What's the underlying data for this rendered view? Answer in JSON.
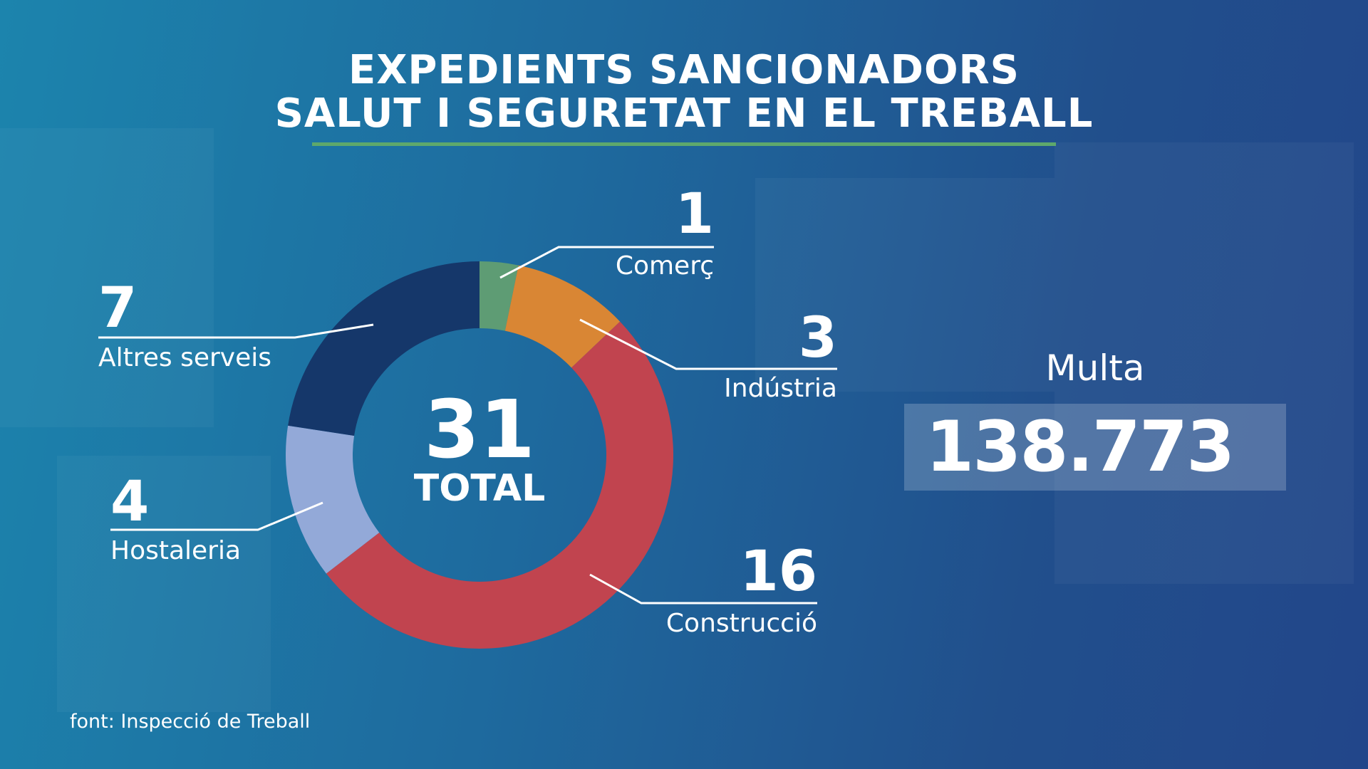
{
  "title_line1": "EXPEDIENTS SANCIONADORS",
  "title_line2": "SALUT I SEGURETAT EN EL TREBALL",
  "colors": {
    "underline": "#5ea86c",
    "background": "#1e6a9e"
  },
  "chart_data": {
    "type": "pie",
    "variant": "donut",
    "title": "EXPEDIENTS SANCIONADORS SALUT I SEGURETAT EN EL TREBALL",
    "categories": [
      "Comerç",
      "Indústria",
      "Construcció",
      "Hostaleria",
      "Altres serveis"
    ],
    "values": [
      1,
      3,
      16,
      4,
      7
    ],
    "value_labels": [
      "1",
      "3",
      "16",
      "4",
      "7"
    ],
    "colors": [
      "#5e9c74",
      "#d98634",
      "#c1444f",
      "#93a9d8",
      "#15376a"
    ],
    "total": "31",
    "total_label": "TOTAL",
    "start": "top",
    "direction": "clockwise"
  },
  "fine": {
    "label": "Multa",
    "value": "138.773"
  },
  "source": "font: Inspecció de Treball"
}
